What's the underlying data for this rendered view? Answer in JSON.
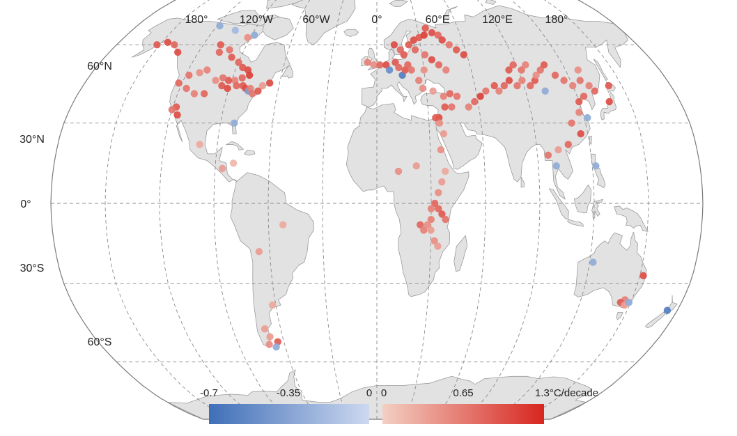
{
  "map": {
    "projection": "Robinson",
    "ocean_color": "#ffffff",
    "land_color": "#e2e2e2",
    "coast_color": "#9a9a9a",
    "graticule_color": "#8a8a8a",
    "longitude_labels": [
      "180°",
      "120°W",
      "60°W",
      "0°",
      "60°E",
      "120°E",
      "180°"
    ],
    "latitude_labels": [
      "60°N",
      "30°N",
      "0°",
      "30°S",
      "60°S"
    ]
  },
  "legend": {
    "negative": {
      "min_label": "-0.7",
      "mid_label": "-0.35",
      "max_label": "0",
      "color_from": "#3f6fb8",
      "color_to": "#cdd8ef"
    },
    "positive": {
      "min_label": "0",
      "mid_label": "0.65",
      "max_label": "1.3°C/decade",
      "color_from": "#f3cfc3",
      "color_to": "#d7261f"
    }
  },
  "stations": [
    [
      -152,
      60,
      0.9
    ],
    [
      -146,
      61,
      1.0
    ],
    [
      -140,
      60,
      0.8
    ],
    [
      -134,
      57,
      1.0
    ],
    [
      -118,
      68,
      -0.3
    ],
    [
      -104,
      66,
      -0.2
    ],
    [
      -92,
      63,
      0.5
    ],
    [
      -88,
      64,
      -0.3
    ],
    [
      -108,
      60,
      0.9
    ],
    [
      -106,
      57,
      0.8
    ],
    [
      -100,
      58,
      0.7
    ],
    [
      -96,
      55,
      0.9
    ],
    [
      -90,
      53,
      0.8
    ],
    [
      -86,
      51,
      0.9
    ],
    [
      -82,
      50,
      1.0
    ],
    [
      -80,
      48,
      1.1
    ],
    [
      -84,
      47,
      0.8
    ],
    [
      -88,
      46,
      0.6
    ],
    [
      -92,
      46,
      0.9
    ],
    [
      -96,
      47,
      0.7
    ],
    [
      -100,
      46,
      0.5
    ],
    [
      -95,
      44,
      0.9
    ],
    [
      -91,
      43,
      1.0
    ],
    [
      -86,
      44,
      0.8
    ],
    [
      -82,
      44,
      0.9
    ],
    [
      -80,
      43,
      1.0
    ],
    [
      -78,
      42,
      -0.4
    ],
    [
      -77,
      43,
      0.6
    ],
    [
      -75,
      41,
      0.7
    ],
    [
      -72,
      42,
      0.9
    ],
    [
      -70,
      44,
      0.4
    ],
    [
      -66,
      45,
      1.0
    ],
    [
      -108,
      50,
      0.6
    ],
    [
      -112,
      49,
      0.5
    ],
    [
      -118,
      48,
      0.7
    ],
    [
      -122,
      45,
      0.8
    ],
    [
      -116,
      43,
      0.7
    ],
    [
      -110,
      41,
      0.6
    ],
    [
      -104,
      41,
      0.8
    ],
    [
      -118,
      36,
      0.9
    ],
    [
      -120,
      35,
      0.7
    ],
    [
      -116,
      33,
      1.0
    ],
    [
      -82,
      30,
      -0.3
    ],
    [
      -100,
      22,
      0.3
    ],
    [
      -80,
      15,
      0.2
    ],
    [
      -86,
      13,
      0.4
    ],
    [
      -52,
      -8,
      0.3
    ],
    [
      -66,
      -18,
      0.4
    ],
    [
      -62,
      -38,
      0.3
    ],
    [
      -70,
      -47,
      0.4
    ],
    [
      -68,
      -50,
      0.4
    ],
    [
      -64,
      -52,
      0.9
    ],
    [
      -66,
      -54,
      -0.3
    ],
    [
      -70,
      -53,
      0.5
    ],
    [
      -6,
      53,
      0.6
    ],
    [
      -2,
      52,
      0.5
    ],
    [
      2,
      52,
      0.8
    ],
    [
      6,
      52,
      1.0
    ],
    [
      8,
      50,
      -0.5
    ],
    [
      12,
      53,
      0.9
    ],
    [
      14,
      51,
      0.8
    ],
    [
      16,
      48,
      -0.6
    ],
    [
      18,
      50,
      0.9
    ],
    [
      20,
      52,
      0.8
    ],
    [
      22,
      50,
      0.7
    ],
    [
      18,
      56,
      0.9
    ],
    [
      16,
      58,
      0.8
    ],
    [
      12,
      60,
      1.0
    ],
    [
      22,
      60,
      0.9
    ],
    [
      26,
      62,
      1.0
    ],
    [
      30,
      63,
      0.9
    ],
    [
      34,
      64,
      1.1
    ],
    [
      36,
      67,
      0.9
    ],
    [
      40,
      65,
      1.0
    ],
    [
      44,
      64,
      0.8
    ],
    [
      46,
      62,
      1.0
    ],
    [
      50,
      60,
      0.7
    ],
    [
      54,
      58,
      0.9
    ],
    [
      58,
      56,
      1.0
    ],
    [
      26,
      58,
      0.8
    ],
    [
      32,
      56,
      0.7
    ],
    [
      36,
      54,
      1.0
    ],
    [
      40,
      52,
      0.8
    ],
    [
      44,
      50,
      0.6
    ],
    [
      30,
      50,
      0.5
    ],
    [
      26,
      46,
      0.6
    ],
    [
      28,
      43,
      0.5
    ],
    [
      34,
      42,
      0.4
    ],
    [
      40,
      40,
      0.6
    ],
    [
      44,
      41,
      0.8
    ],
    [
      48,
      40,
      0.7
    ],
    [
      40,
      36,
      0.9
    ],
    [
      44,
      36,
      0.7
    ],
    [
      36,
      32,
      1.0
    ],
    [
      36,
      30,
      0.5
    ],
    [
      54,
      36,
      0.6
    ],
    [
      58,
      38,
      0.8
    ],
    [
      62,
      40,
      1.1
    ],
    [
      66,
      42,
      0.7
    ],
    [
      72,
      44,
      0.9
    ],
    [
      74,
      42,
      0.6
    ],
    [
      78,
      44,
      0.8
    ],
    [
      82,
      46,
      1.0
    ],
    [
      86,
      44,
      0.7
    ],
    [
      90,
      46,
      0.6
    ],
    [
      94,
      44,
      0.8
    ],
    [
      98,
      46,
      0.9
    ],
    [
      102,
      42,
      -0.3
    ],
    [
      84,
      50,
      0.9
    ],
    [
      88,
      52,
      0.8
    ],
    [
      92,
      50,
      0.7
    ],
    [
      96,
      52,
      0.6
    ],
    [
      100,
      48,
      0.5
    ],
    [
      104,
      50,
      0.7
    ],
    [
      108,
      52,
      0.9
    ],
    [
      112,
      48,
      0.8
    ],
    [
      116,
      46,
      0.7
    ],
    [
      120,
      44,
      0.6
    ],
    [
      124,
      40,
      0.8
    ],
    [
      120,
      38,
      0.9
    ],
    [
      118,
      34,
      0.6
    ],
    [
      122,
      32,
      -0.3
    ],
    [
      116,
      26,
      1.0
    ],
    [
      126,
      46,
      0.7
    ],
    [
      130,
      44,
      0.6
    ],
    [
      128,
      50,
      0.5
    ],
    [
      132,
      42,
      0.8
    ],
    [
      138,
      38,
      1.0
    ],
    [
      142,
      44,
      0.9
    ],
    [
      112,
      30,
      0.7
    ],
    [
      108,
      22,
      0.8
    ],
    [
      102,
      20,
      0.4
    ],
    [
      96,
      18,
      0.7
    ],
    [
      100,
      14,
      -0.3
    ],
    [
      122,
      14,
      -0.3
    ],
    [
      34,
      32,
      0.9
    ],
    [
      38,
      26,
      0.4
    ],
    [
      36,
      20,
      0.5
    ],
    [
      12,
      12,
      0.5
    ],
    [
      22,
      14,
      0.4
    ],
    [
      38,
      12,
      0.3
    ],
    [
      36,
      8,
      0.4
    ],
    [
      34,
      4,
      0.5
    ],
    [
      32,
      0,
      0.8
    ],
    [
      30,
      -2,
      0.6
    ],
    [
      34,
      -2,
      0.8
    ],
    [
      36,
      -4,
      0.9
    ],
    [
      38,
      -6,
      0.7
    ],
    [
      30,
      -6,
      0.6
    ],
    [
      28,
      -8,
      0.5
    ],
    [
      24,
      -8,
      0.8
    ],
    [
      26,
      -10,
      0.6
    ],
    [
      30,
      -10,
      0.4
    ],
    [
      32,
      -14,
      0.5
    ],
    [
      34,
      -16,
      0.4
    ],
    [
      122,
      -22,
      -0.3
    ],
    [
      152,
      -27,
      1.0
    ],
    [
      146,
      -36,
      0.6
    ],
    [
      144,
      -37,
      0.9
    ],
    [
      147,
      -38,
      0.4
    ],
    [
      149,
      -37,
      -0.3
    ],
    [
      174,
      -40,
      -0.6
    ]
  ]
}
